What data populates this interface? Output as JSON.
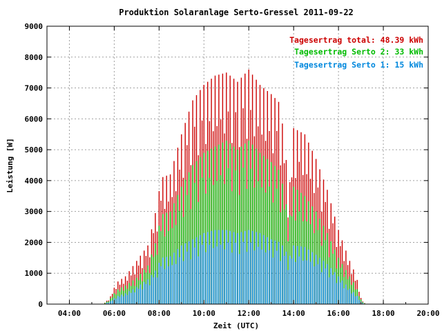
{
  "chart_data": {
    "type": "bar",
    "title": "Produktion Solaranlage Serto-Gressel 2011-09-22",
    "xlabel": "Zeit (UTC)",
    "ylabel": "Leistung [W]",
    "xlim": [
      3,
      20
    ],
    "ylim": [
      0,
      9000
    ],
    "x_ticks": [
      "04:00",
      "06:00",
      "08:00",
      "10:00",
      "12:00",
      "14:00",
      "16:00",
      "18:00",
      "20:00"
    ],
    "y_ticks": [
      "0",
      "1000",
      "2000",
      "3000",
      "4000",
      "5000",
      "6000",
      "7000",
      "8000",
      "9000"
    ],
    "grid": true,
    "legend_position": "top-right",
    "legend": [
      {
        "label": "Tagesertrag total: 48.39 kWh",
        "color": "#cc0000"
      },
      {
        "label": "Tagesertrag Serto 2: 33 kWh",
        "color": "#00bb00"
      },
      {
        "label": "Tagesertrag Serto 1: 15 kWh",
        "color": "#0088dd"
      }
    ],
    "bar_interval_minutes": 5,
    "series": [
      {
        "name": "total",
        "color": "#cc0000",
        "anchors": [
          [
            5.5,
            0
          ],
          [
            5.8,
            200
          ],
          [
            6.1,
            700
          ],
          [
            6.5,
            900
          ],
          [
            7.0,
            1400
          ],
          [
            7.5,
            1900
          ],
          [
            7.85,
            3000
          ],
          [
            8.1,
            4100
          ],
          [
            8.5,
            4200
          ],
          [
            9.0,
            5500
          ],
          [
            9.5,
            6600
          ],
          [
            10.0,
            7100
          ],
          [
            10.5,
            7400
          ],
          [
            11.0,
            7500
          ],
          [
            11.5,
            7200
          ],
          [
            12.0,
            7600
          ],
          [
            12.5,
            7100
          ],
          [
            13.0,
            6800
          ],
          [
            13.4,
            6500
          ],
          [
            13.6,
            5200
          ],
          [
            13.8,
            3600
          ],
          [
            14.0,
            5700
          ],
          [
            14.5,
            5500
          ],
          [
            15.0,
            4700
          ],
          [
            15.5,
            3700
          ],
          [
            16.0,
            2400
          ],
          [
            16.5,
            1400
          ],
          [
            16.8,
            900
          ],
          [
            17.0,
            200
          ],
          [
            17.2,
            0
          ]
        ]
      },
      {
        "name": "Serto 2",
        "color": "#00bb00",
        "anchors": [
          [
            5.5,
            0
          ],
          [
            5.8,
            150
          ],
          [
            6.1,
            450
          ],
          [
            6.5,
            600
          ],
          [
            7.0,
            850
          ],
          [
            7.5,
            1250
          ],
          [
            7.85,
            2000
          ],
          [
            8.1,
            2900
          ],
          [
            8.5,
            3000
          ],
          [
            9.0,
            3800
          ],
          [
            9.5,
            4500
          ],
          [
            10.0,
            4900
          ],
          [
            10.5,
            5100
          ],
          [
            11.0,
            5300
          ],
          [
            11.5,
            5000
          ],
          [
            12.0,
            5300
          ],
          [
            12.5,
            4900
          ],
          [
            13.0,
            4600
          ],
          [
            13.4,
            4300
          ],
          [
            13.6,
            3500
          ],
          [
            13.8,
            2700
          ],
          [
            14.0,
            3800
          ],
          [
            14.5,
            3500
          ],
          [
            15.0,
            3000
          ],
          [
            15.5,
            2300
          ],
          [
            16.0,
            1500
          ],
          [
            16.5,
            900
          ],
          [
            16.8,
            550
          ],
          [
            17.0,
            150
          ],
          [
            17.2,
            0
          ]
        ]
      },
      {
        "name": "Serto 1",
        "color": "#0088dd",
        "anchors": [
          [
            5.5,
            0
          ],
          [
            5.8,
            80
          ],
          [
            6.1,
            250
          ],
          [
            6.5,
            350
          ],
          [
            7.0,
            550
          ],
          [
            7.5,
            800
          ],
          [
            7.85,
            1100
          ],
          [
            8.1,
            1500
          ],
          [
            8.5,
            1550
          ],
          [
            9.0,
            1900
          ],
          [
            9.5,
            2100
          ],
          [
            10.0,
            2300
          ],
          [
            10.5,
            2400
          ],
          [
            11.0,
            2400
          ],
          [
            11.5,
            2300
          ],
          [
            12.0,
            2400
          ],
          [
            12.5,
            2300
          ],
          [
            13.0,
            2100
          ],
          [
            13.4,
            2000
          ],
          [
            13.6,
            1800
          ],
          [
            13.8,
            1500
          ],
          [
            14.0,
            1900
          ],
          [
            14.5,
            1850
          ],
          [
            15.0,
            1600
          ],
          [
            15.5,
            1300
          ],
          [
            16.0,
            900
          ],
          [
            16.5,
            500
          ],
          [
            16.8,
            300
          ],
          [
            17.0,
            80
          ],
          [
            17.2,
            0
          ]
        ]
      }
    ]
  }
}
